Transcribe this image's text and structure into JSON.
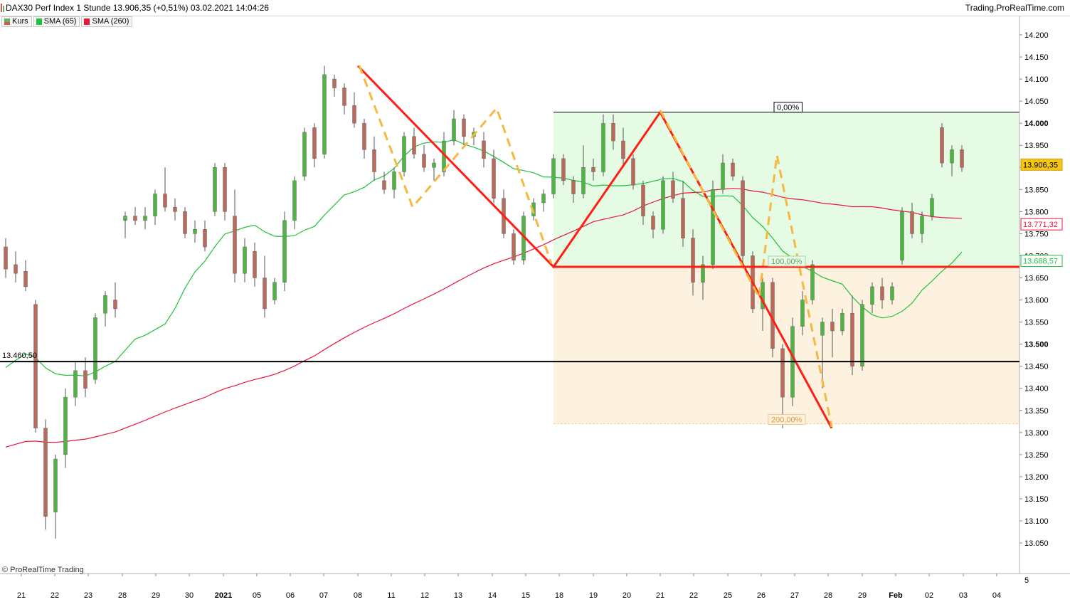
{
  "header": {
    "instrument_line": "DAX30 Perf Index 1 Stunde 13.906,35 (+0,51%) 03.02.2021 14:04:26",
    "brand": "Trading.ProRealTime.com"
  },
  "legend": [
    {
      "label": "Kurs",
      "color": "#5cb85c",
      "color2": "#d9534f"
    },
    {
      "label": "SMA (65)",
      "color": "#1ec33b"
    },
    {
      "label": "SMA (260)",
      "color": "#e8153c"
    }
  ],
  "copyright": "© ProRealTime Trading",
  "colors": {
    "up_candle": "#4fb443",
    "down_candle": "#b96a5c",
    "sma65": "#1ec33b",
    "sma260": "#e8153c",
    "pattern_red": "#ff1e14",
    "pattern_dashed": "#f5b942",
    "zone_green": "#e6fbe4",
    "zone_orange": "#fdf1e0"
  },
  "chart_data": {
    "type": "candlestick",
    "timeframe": "1 Stunde",
    "y_axis": {
      "ylim": [
        13000,
        14250
      ],
      "ticks": [
        "14.200",
        "14.150",
        "14.100",
        "14.050",
        "14.000",
        "13.950",
        "13.900",
        "13.850",
        "13.800",
        "13.750",
        "13.700",
        "13.650",
        "13.600",
        "13.550",
        "13.500",
        "13.450",
        "13.400",
        "13.350",
        "13.300",
        "13.250",
        "13.200",
        "13.150",
        "13.100",
        "13.050"
      ],
      "bold_ticks": [
        "14.000",
        "13.500"
      ],
      "bottom_label": "5"
    },
    "x_axis": {
      "labels": [
        "21",
        "22",
        "23",
        "28",
        "29",
        "30",
        "2021",
        "05",
        "06",
        "07",
        "08",
        "11",
        "12",
        "13",
        "14",
        "15",
        "18",
        "19",
        "20",
        "21",
        "22",
        "25",
        "26",
        "27",
        "28",
        "29",
        "Feb",
        "02",
        "03",
        "04"
      ],
      "bold_labels": [
        "2021",
        "Feb"
      ]
    },
    "price_labels": {
      "last": "13.906,35",
      "sma260": "13.771,32",
      "sma65": "13.688,57",
      "horizontal_line": "13.460,50"
    },
    "horizontal_level": 13460.5,
    "fib_levels": [
      {
        "label": "0,00%",
        "value": 14025
      },
      {
        "label": "100,00%",
        "value": 13675
      },
      {
        "label": "200,00%",
        "value": 13320
      }
    ],
    "pattern_points": [
      {
        "x": "08",
        "value": 14130
      },
      {
        "x": "15/18",
        "value": 13675
      },
      {
        "x": "21",
        "value": 14025
      },
      {
        "x": "28",
        "value": 13310
      }
    ],
    "ohlc": [
      [
        13720,
        13740,
        13650,
        13670
      ],
      [
        13680,
        13710,
        13640,
        13660
      ],
      [
        13665,
        13690,
        13620,
        13630
      ],
      [
        13590,
        13600,
        13300,
        13310
      ],
      [
        13310,
        13330,
        13080,
        13110
      ],
      [
        13120,
        13250,
        13060,
        13240
      ],
      [
        13250,
        13400,
        13220,
        13380
      ],
      [
        13380,
        13460,
        13360,
        13440
      ],
      [
        13440,
        13470,
        13380,
        13400
      ],
      [
        13420,
        13570,
        13410,
        13560
      ],
      [
        13570,
        13620,
        13540,
        13610
      ],
      [
        13600,
        13640,
        13560,
        13580
      ],
      [
        13780,
        13800,
        13740,
        13790
      ],
      [
        13790,
        13810,
        13770,
        13780
      ],
      [
        13780,
        13810,
        13760,
        13790
      ],
      [
        13790,
        13850,
        13770,
        13840
      ],
      [
        13840,
        13900,
        13800,
        13810
      ],
      [
        13810,
        13830,
        13780,
        13800
      ],
      [
        13800,
        13810,
        13740,
        13750
      ],
      [
        13750,
        13780,
        13730,
        13760
      ],
      [
        13760,
        13780,
        13710,
        13720
      ],
      [
        13800,
        13910,
        13790,
        13900
      ],
      [
        13900,
        13910,
        13780,
        13800
      ],
      [
        13790,
        13850,
        13640,
        13660
      ],
      [
        13660,
        13740,
        13640,
        13720
      ],
      [
        13710,
        13730,
        13630,
        13650
      ],
      [
        13650,
        13700,
        13560,
        13580
      ],
      [
        13600,
        13650,
        13590,
        13640
      ],
      [
        13640,
        13800,
        13620,
        13780
      ],
      [
        13780,
        13880,
        13760,
        13870
      ],
      [
        13880,
        13990,
        13870,
        13980
      ],
      [
        13990,
        14000,
        13900,
        13920
      ],
      [
        13930,
        14130,
        13920,
        14110
      ],
      [
        14100,
        14110,
        14060,
        14080
      ],
      [
        14080,
        14090,
        14020,
        14040
      ],
      [
        14040,
        14070,
        13990,
        14000
      ],
      [
        14000,
        14010,
        13920,
        13940
      ],
      [
        13940,
        13970,
        13870,
        13890
      ],
      [
        13870,
        13890,
        13840,
        13850
      ],
      [
        13850,
        13900,
        13830,
        13890
      ],
      [
        13890,
        13980,
        13880,
        13970
      ],
      [
        13970,
        13990,
        13920,
        13930
      ],
      [
        13930,
        13950,
        13890,
        13900
      ],
      [
        13900,
        13920,
        13870,
        13910
      ],
      [
        13890,
        13980,
        13880,
        13960
      ],
      [
        13960,
        14030,
        13950,
        14010
      ],
      [
        14010,
        14020,
        13950,
        13970
      ],
      [
        13970,
        13990,
        13950,
        13980
      ],
      [
        13960,
        13980,
        13900,
        13920
      ],
      [
        13920,
        13940,
        13820,
        13830
      ],
      [
        13830,
        13850,
        13740,
        13750
      ],
      [
        13750,
        13760,
        13680,
        13690
      ],
      [
        13690,
        13800,
        13680,
        13790
      ],
      [
        13790,
        13830,
        13780,
        13820
      ],
      [
        13820,
        13850,
        13800,
        13840
      ],
      [
        13840,
        13930,
        13830,
        13920
      ],
      [
        13920,
        13930,
        13860,
        13870
      ],
      [
        13870,
        13880,
        13820,
        13840
      ],
      [
        13840,
        13950,
        13830,
        13900
      ],
      [
        13900,
        13920,
        13870,
        13890
      ],
      [
        13890,
        14020,
        13880,
        14000
      ],
      [
        14000,
        14020,
        13940,
        13960
      ],
      [
        13960,
        13990,
        13900,
        13920
      ],
      [
        13920,
        13930,
        13850,
        13860
      ],
      [
        13860,
        13870,
        13770,
        13790
      ],
      [
        13790,
        13800,
        13740,
        13760
      ],
      [
        13760,
        13880,
        13750,
        13870
      ],
      [
        13870,
        13890,
        13820,
        13830
      ],
      [
        13830,
        13870,
        13720,
        13740
      ],
      [
        13740,
        13760,
        13610,
        13640
      ],
      [
        13640,
        13700,
        13600,
        13680
      ],
      [
        13680,
        13870,
        13670,
        13850
      ],
      [
        13850,
        13930,
        13840,
        13910
      ],
      [
        13910,
        13920,
        13870,
        13880
      ],
      [
        13870,
        13880,
        13680,
        13700
      ],
      [
        13700,
        13710,
        13570,
        13580
      ],
      [
        13580,
        13650,
        13530,
        13640
      ],
      [
        13640,
        13650,
        13470,
        13490
      ],
      [
        13490,
        13500,
        13310,
        13380
      ],
      [
        13380,
        13560,
        13360,
        13540
      ],
      [
        13540,
        13620,
        13520,
        13600
      ],
      [
        13600,
        13690,
        13590,
        13680
      ],
      [
        13520,
        13560,
        13400,
        13550
      ],
      [
        13550,
        13580,
        13470,
        13530
      ],
      [
        13530,
        13580,
        13520,
        13570
      ],
      [
        13570,
        13610,
        13430,
        13450
      ],
      [
        13450,
        13600,
        13440,
        13590
      ],
      [
        13590,
        13640,
        13570,
        13630
      ],
      [
        13630,
        13650,
        13580,
        13600
      ],
      [
        13600,
        13640,
        13590,
        13630
      ],
      [
        13690,
        13810,
        13680,
        13800
      ],
      [
        13800,
        13820,
        13740,
        13750
      ],
      [
        13750,
        13800,
        13730,
        13790
      ],
      [
        13790,
        13840,
        13780,
        13830
      ],
      [
        13990,
        14000,
        13900,
        13910
      ],
      [
        13910,
        13950,
        13880,
        13940
      ],
      [
        13940,
        13950,
        13890,
        13900
      ]
    ]
  }
}
